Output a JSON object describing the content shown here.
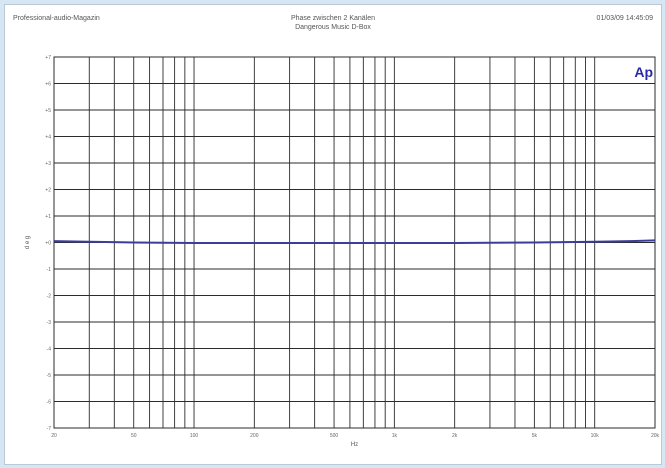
{
  "header": {
    "left": "Professional-audio-Magazin",
    "center_line1": "Phase zwischen 2 Kanälen",
    "center_line2": "Dangerous Music D-Box",
    "right": "01/03/09 14:45:09"
  },
  "logo": {
    "text": "Ap",
    "color": "#2a2aa8"
  },
  "colors": {
    "trace": "#3c3c9a",
    "grid": "#2b2b2b",
    "background": "#ffffff"
  },
  "chart_data": {
    "type": "line",
    "title": "Phase zwischen 2 Kanälen",
    "subtitle": "Dangerous Music D-Box",
    "xlabel": "Hz",
    "ylabel": "d e g",
    "x_scale": "log",
    "xlim": [
      20,
      20000
    ],
    "ylim": [
      -7,
      7
    ],
    "grid": true,
    "x_ticks": [
      20,
      50,
      100,
      200,
      500,
      1000,
      2000,
      5000,
      10000,
      20000
    ],
    "x_tick_labels": [
      "20",
      "50",
      "100",
      "200",
      "500",
      "1k",
      "2k",
      "5k",
      "10k",
      "20k"
    ],
    "y_ticks": [
      7,
      6,
      5,
      4,
      3,
      2,
      1,
      0,
      -1,
      -2,
      -3,
      -4,
      -5,
      -6,
      -7
    ],
    "y_tick_labels": [
      "+7",
      "+6",
      "+5",
      "+4",
      "+3",
      "+2",
      "+1",
      "+0",
      "-1",
      "-2",
      "-3",
      "-4",
      "-5",
      "-6",
      "-7"
    ],
    "series": [
      {
        "x": [
          20,
          30,
          50,
          100,
          200,
          500,
          1000,
          2000,
          5000,
          10000,
          15000,
          20000
        ],
        "y": [
          0.05,
          0.03,
          0.0,
          -0.02,
          -0.02,
          -0.02,
          -0.02,
          -0.02,
          0.0,
          0.03,
          0.05,
          0.08
        ]
      }
    ]
  }
}
